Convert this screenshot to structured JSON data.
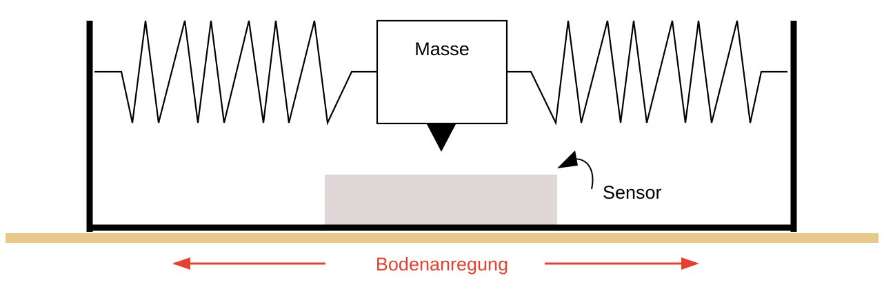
{
  "labels": {
    "mass": "Masse",
    "sensor": "Sensor",
    "excitation": "Bodenanregung"
  },
  "colors": {
    "ground": "#e8c98a",
    "sensor_fill": "#e0d8d8",
    "excitation_arrows": "#e8402e",
    "lines": "#000000",
    "background": "#ffffff"
  }
}
